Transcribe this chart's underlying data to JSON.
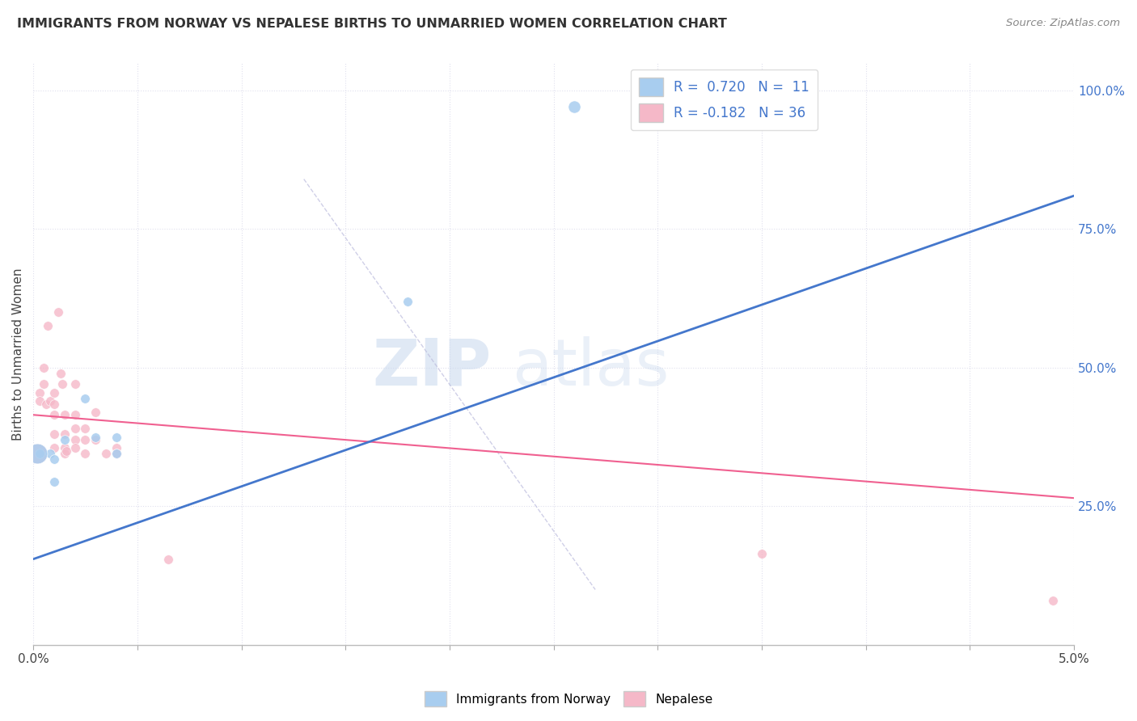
{
  "title": "IMMIGRANTS FROM NORWAY VS NEPALESE BIRTHS TO UNMARRIED WOMEN CORRELATION CHART",
  "source": "Source: ZipAtlas.com",
  "ylabel": "Births to Unmarried Women",
  "watermark_zip": "ZIP",
  "watermark_atlas": "atlas",
  "xlim": [
    0.0,
    0.05
  ],
  "ylim": [
    0.0,
    1.05
  ],
  "norway_R": 0.72,
  "norway_N": 11,
  "nepal_R": -0.182,
  "nepal_N": 36,
  "norway_color": "#A8CDEF",
  "nepal_color": "#F5B8C8",
  "norway_line_color": "#4477CC",
  "nepal_line_color": "#F06090",
  "norway_points": [
    [
      0.0003,
      0.345
    ],
    [
      0.0008,
      0.345
    ],
    [
      0.001,
      0.335
    ],
    [
      0.001,
      0.295
    ],
    [
      0.0015,
      0.37
    ],
    [
      0.0025,
      0.445
    ],
    [
      0.003,
      0.375
    ],
    [
      0.004,
      0.345
    ],
    [
      0.004,
      0.375
    ],
    [
      0.018,
      0.62
    ],
    [
      0.026,
      0.97
    ]
  ],
  "norway_big_point": [
    0.0002,
    0.345
  ],
  "nepal_points": [
    [
      0.0003,
      0.455
    ],
    [
      0.0003,
      0.44
    ],
    [
      0.0005,
      0.5
    ],
    [
      0.0005,
      0.47
    ],
    [
      0.0006,
      0.435
    ],
    [
      0.0007,
      0.575
    ],
    [
      0.0008,
      0.44
    ],
    [
      0.001,
      0.455
    ],
    [
      0.001,
      0.435
    ],
    [
      0.001,
      0.415
    ],
    [
      0.001,
      0.38
    ],
    [
      0.001,
      0.355
    ],
    [
      0.0012,
      0.6
    ],
    [
      0.0013,
      0.49
    ],
    [
      0.0014,
      0.47
    ],
    [
      0.0015,
      0.415
    ],
    [
      0.0015,
      0.38
    ],
    [
      0.0015,
      0.355
    ],
    [
      0.0015,
      0.345
    ],
    [
      0.0016,
      0.35
    ],
    [
      0.002,
      0.47
    ],
    [
      0.002,
      0.415
    ],
    [
      0.002,
      0.39
    ],
    [
      0.002,
      0.37
    ],
    [
      0.002,
      0.355
    ],
    [
      0.0025,
      0.39
    ],
    [
      0.0025,
      0.37
    ],
    [
      0.0025,
      0.345
    ],
    [
      0.003,
      0.42
    ],
    [
      0.003,
      0.37
    ],
    [
      0.0035,
      0.345
    ],
    [
      0.004,
      0.355
    ],
    [
      0.004,
      0.345
    ],
    [
      0.0065,
      0.155
    ],
    [
      0.035,
      0.165
    ],
    [
      0.049,
      0.08
    ]
  ],
  "nepal_big_point": [
    0.0002,
    0.345
  ],
  "norway_line_x": [
    0.0,
    0.05
  ],
  "norway_line_y": [
    0.155,
    0.81
  ],
  "nepal_line_x": [
    0.0,
    0.05
  ],
  "nepal_line_y": [
    0.415,
    0.265
  ],
  "dash_line_x": [
    0.013,
    0.027
  ],
  "dash_line_y": [
    0.84,
    0.1
  ],
  "grid_color": "#E0E0EE",
  "grid_style": "dotted",
  "background_color": "#FFFFFF",
  "right_ytick_vals": [
    0.25,
    0.5,
    0.75,
    1.0
  ],
  "right_ytick_labels": [
    "25.0%",
    "50.0%",
    "75.0%",
    "100.0%"
  ]
}
